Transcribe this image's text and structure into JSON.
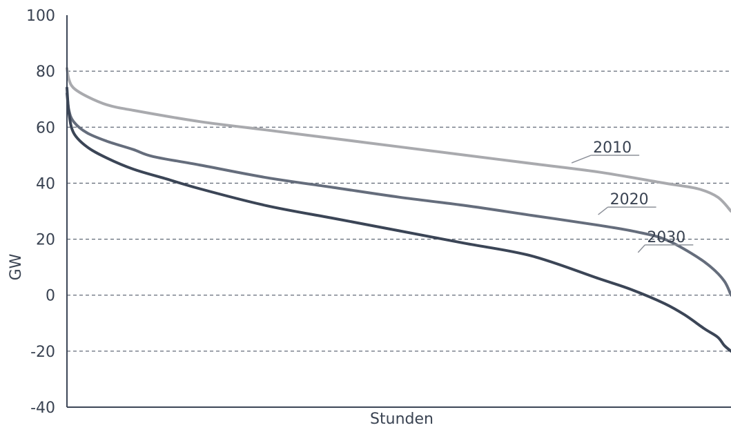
{
  "chart_data": {
    "type": "line",
    "xlabel": "Stunden",
    "ylabel": "GW",
    "ylim": [
      -40,
      100
    ],
    "yticks": [
      100,
      80,
      60,
      40,
      20,
      0,
      -20,
      -40
    ],
    "xlim": [
      0,
      1
    ],
    "grid": "horizontal dashed at y-ticks",
    "series": [
      {
        "name": "2010",
        "color": "#a9aaae",
        "x": [
          0,
          0.003,
          0.01,
          0.03,
          0.06,
          0.1,
          0.2,
          0.3,
          0.4,
          0.5,
          0.6,
          0.7,
          0.8,
          0.9,
          0.95,
          0.98,
          1.0
        ],
        "y": [
          81,
          77,
          74,
          71,
          68,
          66,
          62,
          59,
          56,
          53,
          50,
          47,
          44,
          40,
          38,
          35,
          30
        ]
      },
      {
        "name": "2020",
        "color": "#656d7c",
        "x": [
          0,
          0.003,
          0.01,
          0.03,
          0.06,
          0.1,
          0.13,
          0.2,
          0.3,
          0.4,
          0.5,
          0.6,
          0.7,
          0.8,
          0.86,
          0.9,
          0.94,
          0.97,
          0.99,
          1.0
        ],
        "y": [
          72,
          66,
          62,
          58,
          55,
          52,
          49.5,
          46.5,
          42,
          38.5,
          35,
          32,
          28.5,
          25,
          22.5,
          20,
          15,
          10,
          5,
          0
        ]
      },
      {
        "name": "2030",
        "color": "#3b4556",
        "x": [
          0,
          0.003,
          0.01,
          0.03,
          0.06,
          0.1,
          0.15,
          0.2,
          0.3,
          0.4,
          0.5,
          0.6,
          0.7,
          0.8,
          0.85,
          0.9,
          0.93,
          0.96,
          0.98,
          0.99,
          1.0
        ],
        "y": [
          74,
          65,
          58,
          53,
          49,
          45,
          41.5,
          38,
          32,
          27.5,
          23,
          18.5,
          14,
          6,
          2,
          -3,
          -7,
          -12,
          -15,
          -18,
          -20
        ]
      }
    ]
  }
}
